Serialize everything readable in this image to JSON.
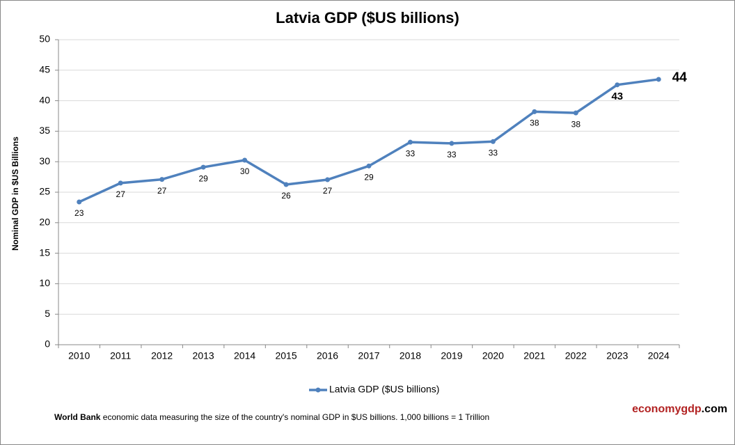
{
  "chart_data": {
    "type": "line",
    "title": "Latvia GDP ($US billions)",
    "y_label": "Nominal GDP in $US  Billions",
    "categories": [
      "2010",
      "2011",
      "2012",
      "2013",
      "2014",
      "2015",
      "2016",
      "2017",
      "2018",
      "2019",
      "2020",
      "2021",
      "2022",
      "2023",
      "2024"
    ],
    "series": [
      {
        "name": "Latvia GDP ($US billions)",
        "color": "#4f81bd",
        "values": [
          23.4,
          26.5,
          27.1,
          29.1,
          30.25,
          26.25,
          27.05,
          29.3,
          33.2,
          33.0,
          33.3,
          38.2,
          38.0,
          42.6,
          43.5
        ],
        "value_labels": [
          "23",
          "27",
          "27",
          "29",
          "30",
          "26",
          "27",
          "29",
          "33",
          "33",
          "33",
          "38",
          "38",
          "43",
          "44"
        ]
      }
    ],
    "ylim": [
      0,
      50
    ],
    "yticks": [
      0,
      5,
      10,
      15,
      20,
      25,
      30,
      35,
      40,
      45,
      50
    ],
    "grid": true,
    "legend": "bottom",
    "footer": {
      "source_bold": "World Bank",
      "source_text": "economic data  measuring the size of the country's nominal GDP in $US billions. 1,000 billions = 1 Trillion",
      "brand": "economygdp",
      "brand_suffix": ".com"
    }
  }
}
